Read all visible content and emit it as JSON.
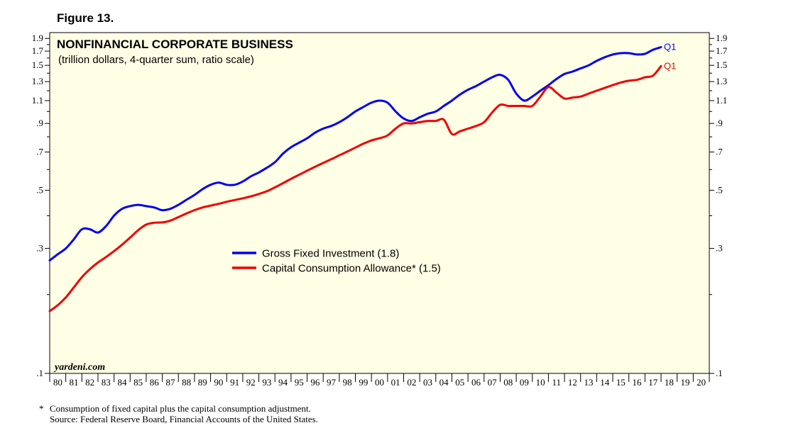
{
  "figure_label": "Figure 13.",
  "chart_data": {
    "type": "line",
    "title": "NONFINANCIAL CORPORATE BUSINESS",
    "subtitle": "(trillion dollars, 4-quarter sum, ratio scale)",
    "y_scale": "log",
    "ylim": [
      0.1,
      2.0
    ],
    "y_ticks": [
      {
        "value": 0.1,
        "label": ".1"
      },
      {
        "value": 0.3,
        "label": ".3"
      },
      {
        "value": 0.5,
        "label": ".5"
      },
      {
        "value": 0.7,
        "label": ".7"
      },
      {
        "value": 0.9,
        "label": ".9"
      },
      {
        "value": 1.1,
        "label": "1.1"
      },
      {
        "value": 1.3,
        "label": "1.3"
      },
      {
        "value": 1.5,
        "label": "1.5"
      },
      {
        "value": 1.7,
        "label": "1.7"
      },
      {
        "value": 1.9,
        "label": "1.9"
      }
    ],
    "xlim": [
      1980,
      2021
    ],
    "x_tick_labels": [
      "80",
      "81",
      "82",
      "83",
      "84",
      "85",
      "86",
      "87",
      "88",
      "89",
      "90",
      "91",
      "92",
      "93",
      "94",
      "95",
      "96",
      "97",
      "98",
      "99",
      "00",
      "01",
      "02",
      "03",
      "04",
      "05",
      "06",
      "07",
      "08",
      "09",
      "10",
      "11",
      "12",
      "13",
      "14",
      "15",
      "16",
      "17",
      "18",
      "19",
      "20"
    ],
    "series": [
      {
        "name": "Gross Fixed Investment (1.8)",
        "color": "#0000ee",
        "end_label": "Q1",
        "x": [
          1980.0,
          1980.5,
          1981.0,
          1981.5,
          1982.0,
          1982.5,
          1983.0,
          1983.5,
          1984.0,
          1984.5,
          1985.0,
          1985.5,
          1986.0,
          1986.5,
          1987.0,
          1987.5,
          1988.0,
          1988.5,
          1989.0,
          1989.5,
          1990.0,
          1990.5,
          1991.0,
          1991.5,
          1992.0,
          1992.5,
          1993.0,
          1993.5,
          1994.0,
          1994.5,
          1995.0,
          1995.5,
          1996.0,
          1996.5,
          1997.0,
          1997.5,
          1998.0,
          1998.5,
          1999.0,
          1999.5,
          2000.0,
          2000.5,
          2001.0,
          2001.5,
          2002.0,
          2002.5,
          2003.0,
          2003.5,
          2004.0,
          2004.5,
          2005.0,
          2005.5,
          2006.0,
          2006.5,
          2007.0,
          2007.5,
          2008.0,
          2008.5,
          2009.0,
          2009.5,
          2010.0,
          2010.5,
          2011.0,
          2011.5,
          2012.0,
          2012.5,
          2013.0,
          2013.5,
          2014.0,
          2014.5,
          2015.0,
          2015.5,
          2016.0,
          2016.5,
          2017.0,
          2017.5,
          2018.0
        ],
        "values": [
          0.27,
          0.285,
          0.3,
          0.325,
          0.355,
          0.355,
          0.345,
          0.365,
          0.4,
          0.425,
          0.435,
          0.44,
          0.435,
          0.43,
          0.42,
          0.425,
          0.44,
          0.46,
          0.48,
          0.505,
          0.525,
          0.535,
          0.525,
          0.525,
          0.54,
          0.565,
          0.585,
          0.61,
          0.64,
          0.69,
          0.73,
          0.76,
          0.79,
          0.83,
          0.86,
          0.88,
          0.91,
          0.95,
          1.0,
          1.04,
          1.08,
          1.1,
          1.08,
          1.0,
          0.94,
          0.92,
          0.95,
          0.98,
          1.0,
          1.05,
          1.1,
          1.16,
          1.21,
          1.25,
          1.3,
          1.35,
          1.38,
          1.32,
          1.17,
          1.1,
          1.14,
          1.2,
          1.26,
          1.33,
          1.39,
          1.42,
          1.46,
          1.5,
          1.56,
          1.61,
          1.65,
          1.67,
          1.67,
          1.65,
          1.66,
          1.72,
          1.76
        ]
      },
      {
        "name": "Capital Consumption Allowance* (1.5)",
        "color": "#ee0000",
        "end_label": "Q1",
        "x": [
          1980.0,
          1980.5,
          1981.0,
          1981.5,
          1982.0,
          1982.5,
          1983.0,
          1983.5,
          1984.0,
          1984.5,
          1985.0,
          1985.5,
          1986.0,
          1986.5,
          1987.0,
          1987.5,
          1988.0,
          1988.5,
          1989.0,
          1989.5,
          1990.0,
          1990.5,
          1991.0,
          1991.5,
          1992.0,
          1992.5,
          1993.0,
          1993.5,
          1994.0,
          1994.5,
          1995.0,
          1995.5,
          1996.0,
          1996.5,
          1997.0,
          1997.5,
          1998.0,
          1998.5,
          1999.0,
          1999.5,
          2000.0,
          2000.5,
          2001.0,
          2001.5,
          2002.0,
          2002.5,
          2003.0,
          2003.5,
          2004.0,
          2004.5,
          2005.0,
          2005.5,
          2006.0,
          2006.5,
          2007.0,
          2007.5,
          2008.0,
          2008.5,
          2009.0,
          2009.5,
          2010.0,
          2010.5,
          2011.0,
          2011.5,
          2012.0,
          2012.5,
          2013.0,
          2013.5,
          2014.0,
          2014.5,
          2015.0,
          2015.5,
          2016.0,
          2016.5,
          2017.0,
          2017.5,
          2018.0
        ],
        "values": [
          0.173,
          0.182,
          0.195,
          0.213,
          0.233,
          0.25,
          0.265,
          0.278,
          0.293,
          0.31,
          0.33,
          0.352,
          0.37,
          0.376,
          0.377,
          0.383,
          0.395,
          0.408,
          0.42,
          0.43,
          0.437,
          0.444,
          0.452,
          0.459,
          0.466,
          0.474,
          0.484,
          0.496,
          0.513,
          0.532,
          0.553,
          0.573,
          0.594,
          0.615,
          0.636,
          0.657,
          0.68,
          0.703,
          0.728,
          0.753,
          0.775,
          0.79,
          0.81,
          0.86,
          0.9,
          0.9,
          0.91,
          0.92,
          0.92,
          0.93,
          0.82,
          0.84,
          0.86,
          0.88,
          0.91,
          0.99,
          1.06,
          1.05,
          1.05,
          1.05,
          1.05,
          1.14,
          1.24,
          1.18,
          1.12,
          1.13,
          1.14,
          1.17,
          1.2,
          1.23,
          1.26,
          1.29,
          1.31,
          1.32,
          1.35,
          1.37,
          1.49
        ]
      }
    ],
    "legend_placement": "center"
  },
  "watermark": "yardeni.com",
  "footnote": {
    "marker": "*",
    "line1": "Consumption of fixed capital plus the capital consumption adjustment.",
    "line2": "Source: Federal Reserve Board, Financial Accounts of the United States."
  }
}
